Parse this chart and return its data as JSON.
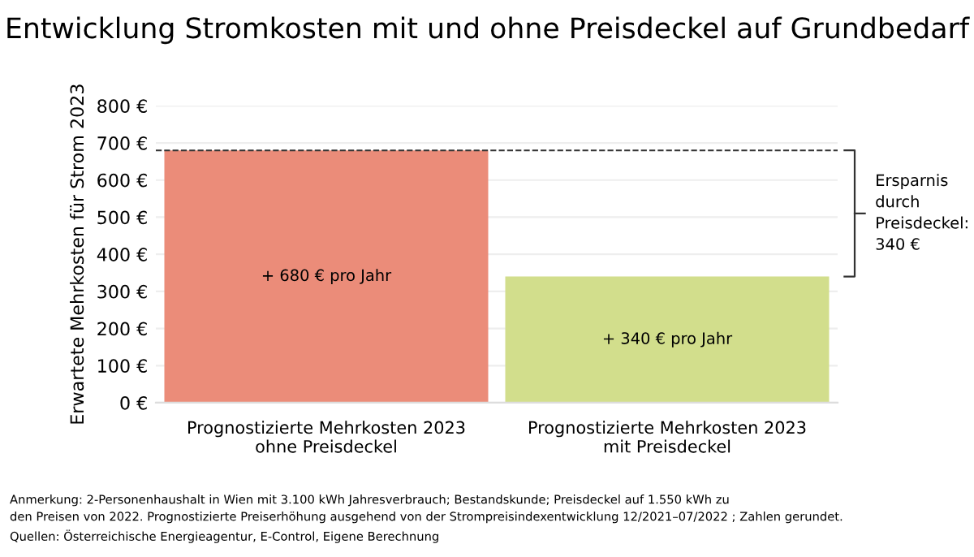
{
  "chart_data": {
    "type": "bar",
    "title": "Entwicklung Stromkosten mit und ohne Preisdeckel auf Grundbedarf",
    "ylabel": "Erwartete Mehrkosten für Strom 2023",
    "categories": [
      "Prognostizierte Mehrkosten 2023\nohne Preisdeckel",
      "Prognostizierte Mehrkosten 2023\nmit Preisdeckel"
    ],
    "values": [
      680,
      340
    ],
    "colors": [
      "#eb8c79",
      "#d2de8c"
    ],
    "value_labels": [
      "+ 680 € pro Jahr",
      "+ 340 € pro Jahr"
    ],
    "ylim": [
      0,
      800
    ],
    "yticks": [
      {
        "value": 0,
        "label": "0 €"
      },
      {
        "value": 100,
        "label": "100 €"
      },
      {
        "value": 200,
        "label": "200 €"
      },
      {
        "value": 300,
        "label": "300 €"
      },
      {
        "value": 400,
        "label": "400 €"
      },
      {
        "value": 500,
        "label": "500 €"
      },
      {
        "value": 600,
        "label": "600 €"
      },
      {
        "value": 700,
        "label": "700 €"
      },
      {
        "value": 800,
        "label": "800 €"
      }
    ],
    "grid": "y",
    "ref_lines": [
      {
        "axis": "y",
        "value": 680,
        "label": null,
        "color": "#333333",
        "line_style": "dashed"
      }
    ],
    "annotations": [
      "Ersparnis\ndurch\nPreisdeckel:\n340 €",
      "Anmerkung: 2-Personenhaushalt in Wien mit 3.100 kWh Jahresverbrauch; Bestandskunde; Preisdeckel auf 1.550 kWh zu\nden Preisen von 2022. Prognostizierte Preiserhöhung ausgehend von der Strompreisindexentwicklung 12/2021–07/2022 ; Zahlen gerundet.\nQuellen: Österreichische Energieagentur, E-Control, Eigene Berechnung"
    ]
  }
}
